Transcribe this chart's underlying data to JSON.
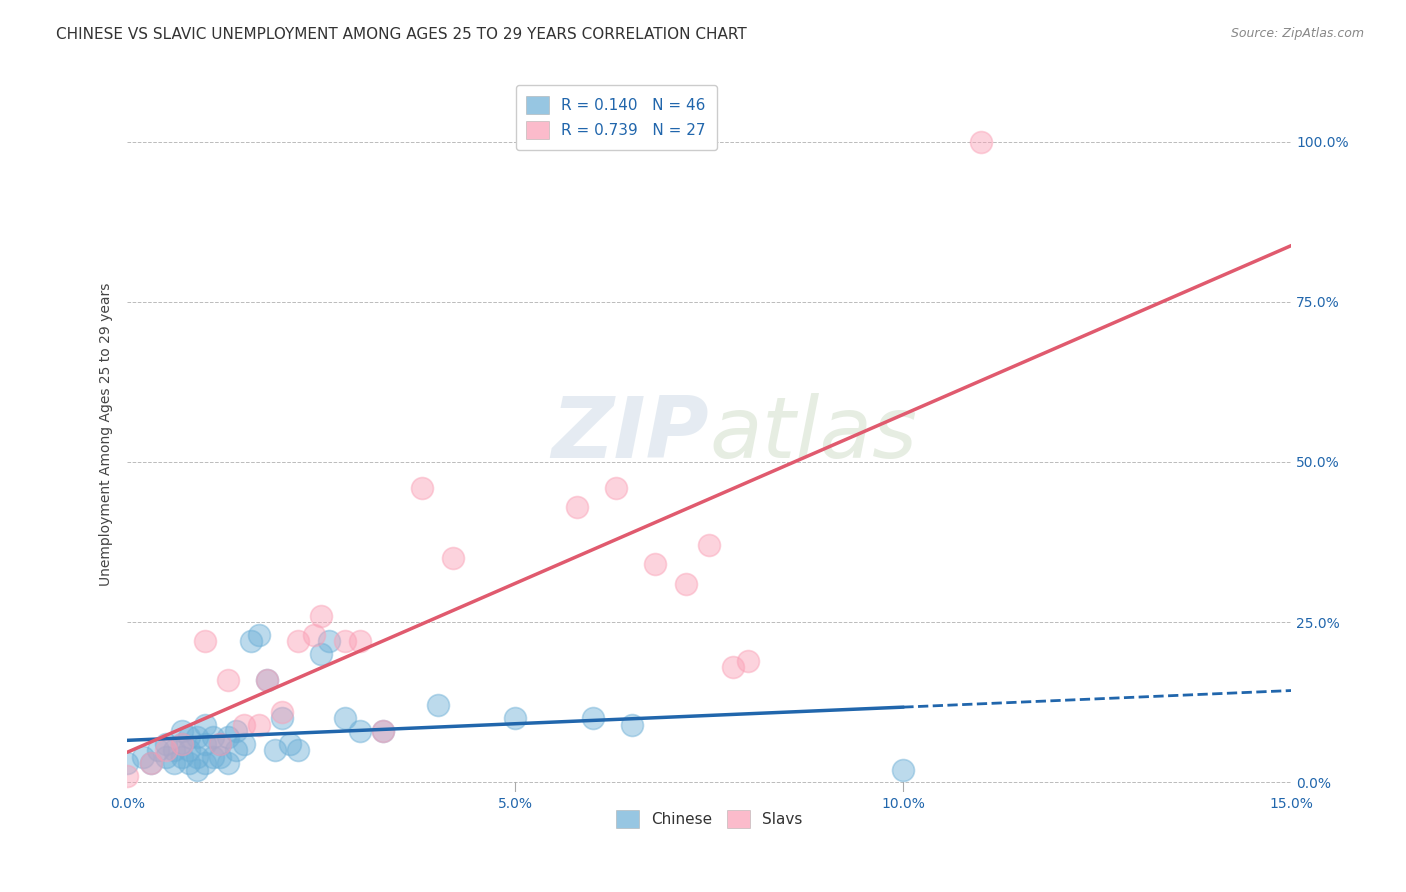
{
  "title": "CHINESE VS SLAVIC UNEMPLOYMENT AMONG AGES 25 TO 29 YEARS CORRELATION CHART",
  "source": "Source: ZipAtlas.com",
  "ylabel": "Unemployment Among Ages 25 to 29 years",
  "xlim": [
    0.0,
    0.15
  ],
  "ylim": [
    -0.015,
    1.1
  ],
  "xticks": [
    0.0,
    0.05,
    0.1,
    0.15
  ],
  "xticklabels": [
    "0.0%",
    "5.0%",
    "10.0%",
    "15.0%"
  ],
  "yticks": [
    0.0,
    0.25,
    0.5,
    0.75,
    1.0
  ],
  "yticklabels": [
    "0.0%",
    "25.0%",
    "50.0%",
    "75.0%",
    "100.0%"
  ],
  "chinese_color": "#6baed6",
  "slavic_color": "#fa9fb5",
  "trendline_chinese_color": "#2166ac",
  "trendline_slavic_color": "#e05a6e",
  "chinese_R": 0.14,
  "chinese_N": 46,
  "slavic_R": 0.739,
  "slavic_N": 27,
  "background_color": "#ffffff",
  "grid_color": "#bbbbbb",
  "title_fontsize": 11,
  "axis_label_fontsize": 10,
  "tick_fontsize": 10,
  "legend_fontsize": 11,
  "watermark_zip": "ZIP",
  "watermark_atlas": "atlas",
  "chinese_x": [
    0.0,
    0.002,
    0.003,
    0.004,
    0.005,
    0.005,
    0.006,
    0.006,
    0.007,
    0.007,
    0.007,
    0.008,
    0.008,
    0.008,
    0.009,
    0.009,
    0.009,
    0.01,
    0.01,
    0.01,
    0.011,
    0.011,
    0.012,
    0.012,
    0.013,
    0.013,
    0.014,
    0.014,
    0.015,
    0.016,
    0.017,
    0.018,
    0.019,
    0.02,
    0.021,
    0.022,
    0.025,
    0.026,
    0.028,
    0.03,
    0.033,
    0.04,
    0.05,
    0.06,
    0.065,
    0.1
  ],
  "chinese_y": [
    0.03,
    0.04,
    0.03,
    0.05,
    0.04,
    0.06,
    0.03,
    0.05,
    0.04,
    0.06,
    0.08,
    0.03,
    0.05,
    0.07,
    0.02,
    0.04,
    0.07,
    0.03,
    0.06,
    0.09,
    0.04,
    0.07,
    0.04,
    0.06,
    0.03,
    0.07,
    0.05,
    0.08,
    0.06,
    0.22,
    0.23,
    0.16,
    0.05,
    0.1,
    0.06,
    0.05,
    0.2,
    0.22,
    0.1,
    0.08,
    0.08,
    0.12,
    0.1,
    0.1,
    0.09,
    0.02
  ],
  "slavic_x": [
    0.0,
    0.003,
    0.005,
    0.007,
    0.01,
    0.012,
    0.013,
    0.015,
    0.017,
    0.018,
    0.02,
    0.022,
    0.024,
    0.025,
    0.028,
    0.03,
    0.033,
    0.038,
    0.042,
    0.058,
    0.063,
    0.068,
    0.072,
    0.075,
    0.078,
    0.08,
    0.11
  ],
  "slavic_y": [
    0.01,
    0.03,
    0.05,
    0.06,
    0.22,
    0.06,
    0.16,
    0.09,
    0.09,
    0.16,
    0.11,
    0.22,
    0.23,
    0.26,
    0.22,
    0.22,
    0.08,
    0.46,
    0.35,
    0.43,
    0.46,
    0.34,
    0.31,
    0.37,
    0.18,
    0.19,
    1.0
  ]
}
